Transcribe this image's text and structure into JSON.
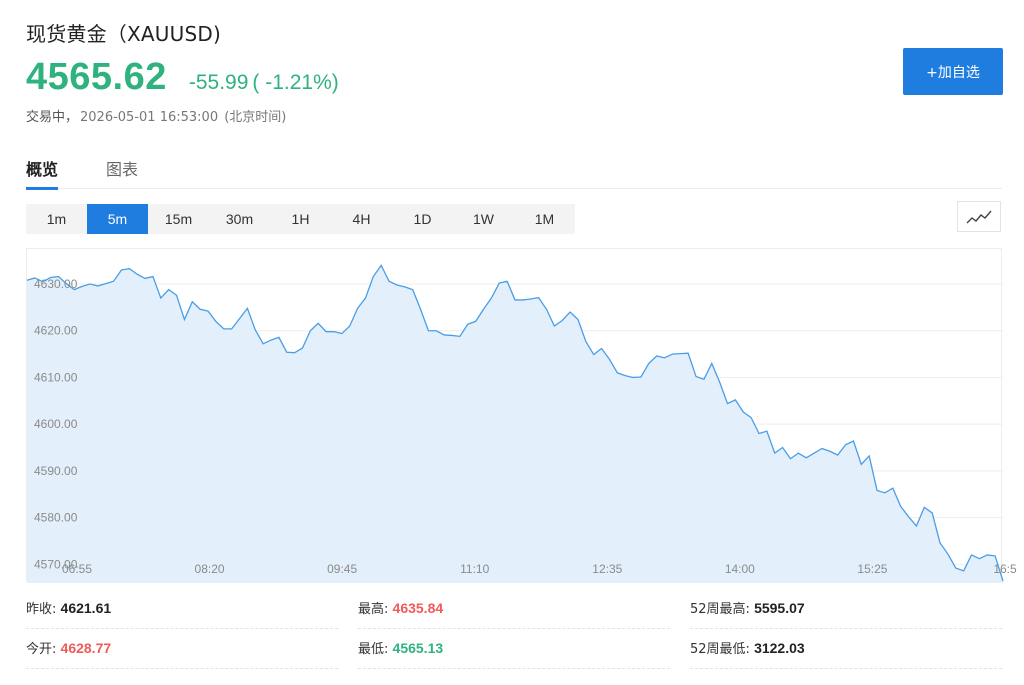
{
  "header": {
    "title": "现货黄金（XAUUSD)",
    "price": "4565.62",
    "change": "-55.99",
    "change_pct": "( -1.21%)",
    "status": "交易中，",
    "timestamp": "2026-05-01 16:53:00",
    "timezone": "(北京时间)",
    "add_button": "+加自选"
  },
  "tabs": [
    {
      "label": "概览",
      "active": true
    },
    {
      "label": "图表",
      "active": false
    }
  ],
  "ranges": [
    {
      "label": "1m",
      "active": false
    },
    {
      "label": "5m",
      "active": true
    },
    {
      "label": "15m",
      "active": false
    },
    {
      "label": "30m",
      "active": false
    },
    {
      "label": "1H",
      "active": false
    },
    {
      "label": "4H",
      "active": false
    },
    {
      "label": "1D",
      "active": false
    },
    {
      "label": "1W",
      "active": false
    },
    {
      "label": "1M",
      "active": false
    }
  ],
  "chart_type_icon": "line-chart-icon",
  "colors": {
    "up": "#f05a5a",
    "down": "#2fb27e",
    "accent": "#1f7de0",
    "line": "#4a9de6",
    "fill": "#e3f0fc"
  },
  "chart_data": {
    "type": "area",
    "title": "",
    "xlabel": "",
    "ylabel": "",
    "x_tick_labels": [
      "06:55",
      "08:20",
      "09:45",
      "11:10",
      "12:35",
      "14:00",
      "15:25",
      "16:5"
    ],
    "y_ticks": [
      4570,
      4580,
      4590,
      4600,
      4610,
      4620,
      4630
    ],
    "y_tick_labels": [
      "4570.00",
      "4580.00",
      "4590.00",
      "4600.00",
      "4610.00",
      "4620.00",
      "4630.00"
    ],
    "ylim": [
      4566,
      4637.5
    ],
    "grid": true,
    "series": [
      {
        "values": [
          4630.8,
          4631.3,
          4630.5,
          4631.4,
          4631.6,
          4630.1,
          4628.8,
          4629.5,
          4630.0,
          4629.6,
          4630.1,
          4630.6,
          4633.0,
          4633.3,
          4632.1,
          4631.2,
          4631.6,
          4627.0,
          4628.8,
          4627.6,
          4622.4,
          4626.2,
          4624.6,
          4624.2,
          4622.0,
          4620.4,
          4620.4,
          4622.6,
          4624.8,
          4620.2,
          4617.2,
          4618.0,
          4618.6,
          4615.4,
          4615.3,
          4616.3,
          4620.0,
          4621.6,
          4619.8,
          4619.8,
          4619.4,
          4621.0,
          4624.8,
          4627.0,
          4631.6,
          4634.0,
          4630.6,
          4629.8,
          4629.4,
          4628.8,
          4624.6,
          4620.0,
          4620.0,
          4619.1,
          4619.0,
          4618.8,
          4621.4,
          4622.0,
          4624.6,
          4627.0,
          4630.2,
          4630.6,
          4626.6,
          4626.6,
          4626.8,
          4627.1,
          4624.6,
          4621.0,
          4622.2,
          4624.0,
          4622.4,
          4617.7,
          4614.9,
          4616.2,
          4613.9,
          4611.0,
          4610.4,
          4610.0,
          4610.1,
          4613.0,
          4614.6,
          4614.2,
          4615.0,
          4615.1,
          4615.2,
          4610.2,
          4609.6,
          4613.0,
          4609.0,
          4604.4,
          4605.2,
          4602.6,
          4601.4,
          4598.0,
          4598.5,
          4593.8,
          4595.0,
          4592.6,
          4593.8,
          4592.8,
          4593.8,
          4594.8,
          4594.2,
          4593.4,
          4595.6,
          4596.4,
          4591.4,
          4593.2,
          4585.8,
          4585.3,
          4586.3,
          4582.4,
          4580.2,
          4578.2,
          4582.2,
          4581.0,
          4574.6,
          4572.2,
          4569.2,
          4568.6,
          4572.0,
          4571.2,
          4572.0,
          4571.8,
          4566.4
        ]
      }
    ]
  },
  "stats": {
    "prev_close_label": "昨收:",
    "prev_close": "4621.61",
    "high_label": "最高:",
    "high": "4635.84",
    "week52_high_label": "52周最高:",
    "week52_high": "5595.07",
    "open_label": "今开:",
    "open": "4628.77",
    "low_label": "最低:",
    "low": "4565.13",
    "week52_low_label": "52周最低:",
    "week52_low": "3122.03"
  }
}
